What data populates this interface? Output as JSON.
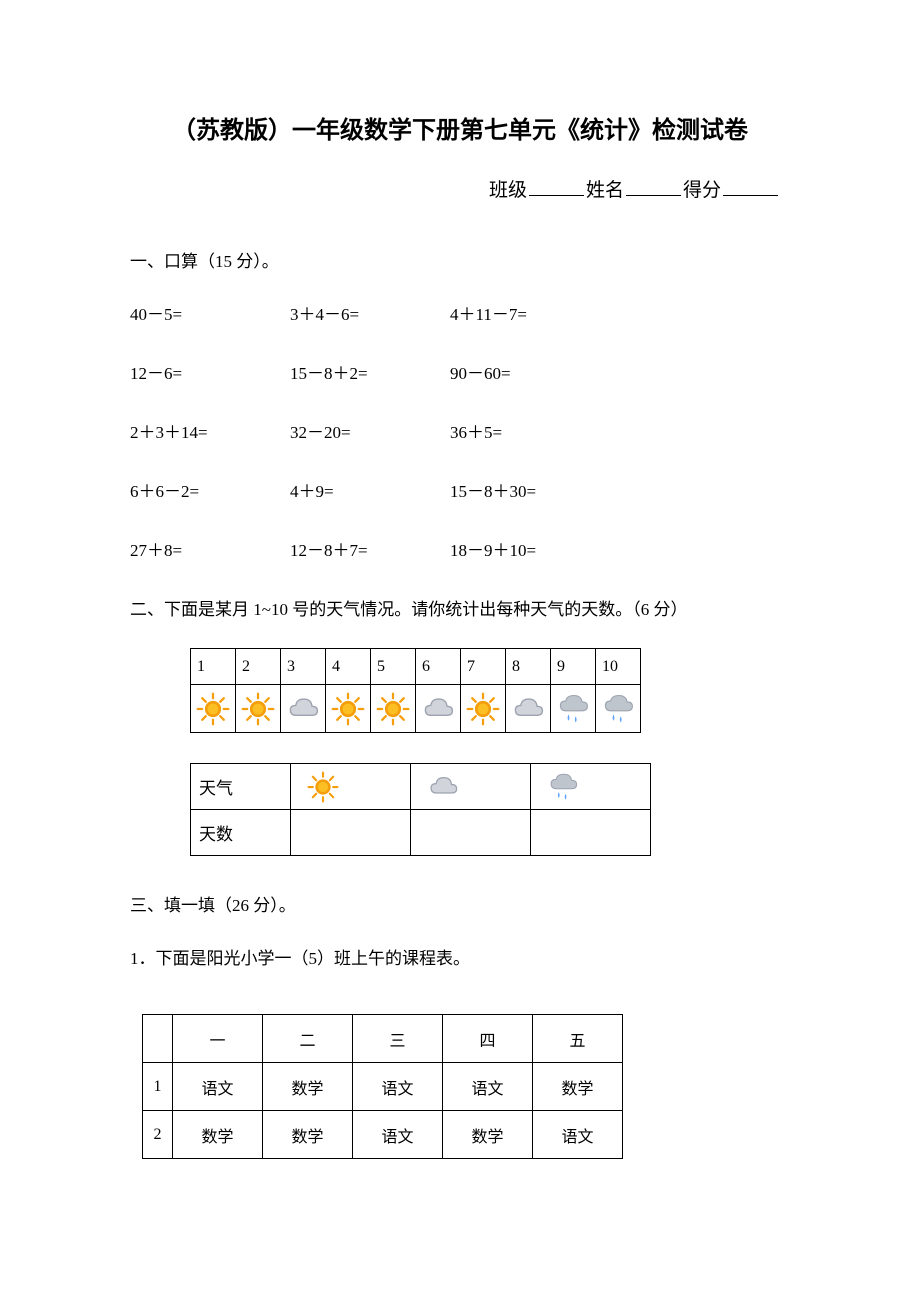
{
  "title": "（苏教版）一年级数学下册第七单元《统计》检测试卷",
  "info": {
    "class_label": "班级",
    "name_label": "姓名",
    "score_label": "得分"
  },
  "section1": {
    "header": "一、口算（15 分）。",
    "rows": [
      [
        "40－5=",
        "3＋4－6=",
        "4＋11－7="
      ],
      [
        "12－6=",
        "15－8＋2=",
        "90－60="
      ],
      [
        "2＋3＋14=",
        "32－20=",
        "36＋5="
      ],
      [
        "6＋6－2=",
        "4＋9=",
        "15－8＋30="
      ],
      [
        "27＋8=",
        "12－8＋7=",
        "18－9＋10="
      ]
    ]
  },
  "section2": {
    "header": "二、下面是某月 1~10 号的天气情况。请你统计出每种天气的天数。（6 分）",
    "days": [
      "1",
      "2",
      "3",
      "4",
      "5",
      "6",
      "7",
      "8",
      "9",
      "10"
    ],
    "weather_seq": [
      "sunny",
      "sunny",
      "cloudy",
      "sunny",
      "sunny",
      "cloudy",
      "sunny",
      "cloudy",
      "rainy",
      "rainy"
    ],
    "summary_label_weather": "天气",
    "summary_label_count": "天数",
    "summary_icons": [
      "sunny",
      "cloudy",
      "rainy"
    ]
  },
  "section3": {
    "header": "三、填一填（26 分）。",
    "sub1": "1．下面是阳光小学一（5）班上午的课程表。",
    "schedule": {
      "days": [
        "一",
        "二",
        "三",
        "四",
        "五"
      ],
      "rows": [
        {
          "idx": "1",
          "cells": [
            "语文",
            "数学",
            "语文",
            "语文",
            "数学"
          ]
        },
        {
          "idx": "2",
          "cells": [
            "数学",
            "数学",
            "语文",
            "数学",
            "语文"
          ]
        }
      ]
    }
  },
  "icons": {
    "sunny_color": "#f59e0b",
    "sunny_center": "#fbbf24",
    "cloudy_color": "#9ca3af",
    "cloudy_fill": "#d1d5db",
    "rainy_cloud": "#bfc5cc",
    "rainy_drop": "#60a5fa"
  }
}
